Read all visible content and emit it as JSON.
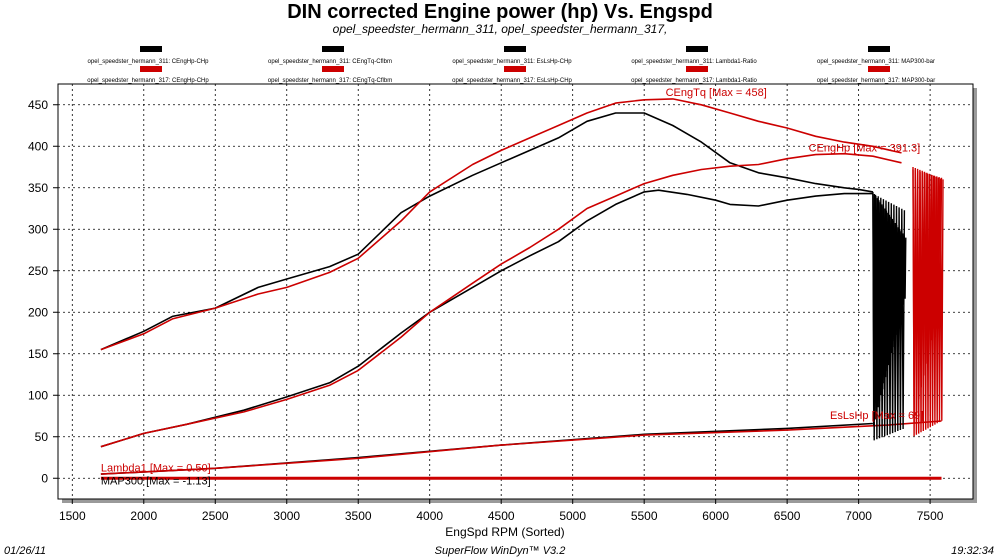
{
  "page": {
    "title": "DIN corrected Engine power (hp) Vs. Engspd",
    "subtitle": "opel_speedster_hermann_311, opel_speedster_hermann_317,",
    "footer_date": "01/26/11",
    "footer_app": "SuperFlow WinDyn™ V3.2",
    "footer_time": "19:32:34"
  },
  "chart_data": {
    "type": "line",
    "title": "DIN corrected Engine power (hp) Vs. Engspd",
    "subtitle": "opel_speedster_hermann_311, opel_speedster_hermann_317,",
    "xlabel": "EngSpd RPM     (Sorted)",
    "ylabel": "",
    "xlim": [
      1400,
      7800
    ],
    "ylim": [
      -25,
      475
    ],
    "xticks": [
      1500,
      2000,
      2500,
      3000,
      3500,
      4000,
      4500,
      5000,
      5500,
      6000,
      6500,
      7000,
      7500
    ],
    "yticks": [
      0,
      50,
      100,
      150,
      200,
      250,
      300,
      350,
      400,
      450
    ],
    "grid": true,
    "legend_position": "top",
    "legend": [
      {
        "label": "opel_speedster_hermann_311: CEngHp-CHp",
        "color": "#000000"
      },
      {
        "label": "opel_speedster_hermann_317: CEngHp-CHp",
        "color": "#cc0000"
      },
      {
        "label": "opel_speedster_hermann_311: CEngTq-Cflbm",
        "color": "#000000"
      },
      {
        "label": "opel_speedster_hermann_317: CEngTq-Cflbm",
        "color": "#cc0000"
      },
      {
        "label": "opel_speedster_hermann_311: EsLsHp-CHp",
        "color": "#000000"
      },
      {
        "label": "opel_speedster_hermann_317: EsLsHp-CHp",
        "color": "#cc0000"
      },
      {
        "label": "opel_speedster_hermann_311: Lambda1-Ratio",
        "color": "#000000"
      },
      {
        "label": "opel_speedster_hermann_317: Lambda1-Ratio",
        "color": "#cc0000"
      },
      {
        "label": "opel_speedster_hermann_311: MAP300-bar",
        "color": "#000000"
      },
      {
        "label": "opel_speedster_hermann_317: MAP300-bar",
        "color": "#cc0000"
      }
    ],
    "annotations": [
      {
        "text": "CEngTq [Max = 458]",
        "x": 5650,
        "y": 458,
        "color": "#cc0000"
      },
      {
        "text": "CEngHp [Max = 391.3]",
        "x": 6650,
        "y": 391,
        "color": "#cc0000"
      },
      {
        "text": "EsLsHp [Max = 69]",
        "x": 6800,
        "y": 69,
        "color": "#cc0000"
      },
      {
        "text": "Lambda1 [Max = 0.50]",
        "x": 1700,
        "y": 6,
        "color": "#cc0000"
      },
      {
        "text": "MAP300 [Max = -1.13]",
        "x": 1700,
        "y": -10,
        "color": "#000000"
      }
    ],
    "series": [
      {
        "color": "#000000",
        "x": [
          1700,
          2000,
          2200,
          2500,
          2800,
          3000,
          3300,
          3500,
          3800,
          4000,
          4300,
          4500,
          4700,
          4900,
          5100,
          5300,
          5500,
          5700,
          5900,
          6100,
          6300,
          6500,
          6700,
          6900,
          7000,
          7100
        ],
        "y": [
          155,
          177,
          195,
          205,
          230,
          240,
          255,
          270,
          320,
          340,
          365,
          380,
          395,
          410,
          430,
          440,
          440,
          425,
          405,
          380,
          368,
          362,
          355,
          350,
          348,
          345
        ]
      },
      {
        "color": "#cc0000",
        "x": [
          1700,
          2000,
          2200,
          2500,
          2800,
          3000,
          3300,
          3500,
          3800,
          4000,
          4300,
          4500,
          4700,
          4900,
          5100,
          5300,
          5500,
          5700,
          5900,
          6100,
          6300,
          6500,
          6700,
          6900,
          7100,
          7300
        ],
        "y": [
          155,
          174,
          192,
          205,
          222,
          230,
          248,
          265,
          310,
          345,
          378,
          395,
          410,
          425,
          440,
          452,
          456,
          457,
          450,
          440,
          430,
          422,
          412,
          405,
          400,
          392
        ]
      },
      {
        "color": "#000000",
        "x": [
          1700,
          2000,
          2300,
          2700,
          3000,
          3300,
          3500,
          3800,
          4000,
          4300,
          4500,
          4700,
          4900,
          5100,
          5300,
          5500,
          5600,
          5800,
          6000,
          6100,
          6300,
          6500,
          6700,
          6900,
          7100
        ],
        "y": [
          38,
          54,
          65,
          82,
          98,
          115,
          135,
          175,
          200,
          230,
          250,
          268,
          285,
          310,
          330,
          345,
          347,
          342,
          335,
          330,
          328,
          335,
          340,
          343,
          343
        ]
      },
      {
        "color": "#cc0000",
        "x": [
          1700,
          2000,
          2300,
          2700,
          3000,
          3300,
          3500,
          3800,
          4000,
          4300,
          4500,
          4700,
          4900,
          5100,
          5300,
          5500,
          5700,
          5900,
          6100,
          6300,
          6500,
          6700,
          6900,
          7100,
          7300
        ],
        "y": [
          38,
          54,
          65,
          80,
          95,
          112,
          130,
          170,
          200,
          235,
          258,
          278,
          300,
          325,
          340,
          355,
          365,
          372,
          376,
          378,
          385,
          390,
          391,
          388,
          380
        ]
      },
      {
        "color": "#000000",
        "x": [
          1700,
          2500,
          3500,
          4500,
          5500,
          6500,
          7100
        ],
        "y": [
          5,
          12,
          25,
          40,
          53,
          60,
          66
        ]
      },
      {
        "color": "#cc0000",
        "x": [
          1700,
          2500,
          3500,
          4500,
          5500,
          6500,
          7200,
          7580
        ],
        "y": [
          5,
          12,
          24,
          40,
          52,
          58,
          64,
          69
        ]
      },
      {
        "color": "#cc0000",
        "x": [
          1700,
          7580
        ],
        "y": [
          0,
          0
        ]
      }
    ]
  }
}
